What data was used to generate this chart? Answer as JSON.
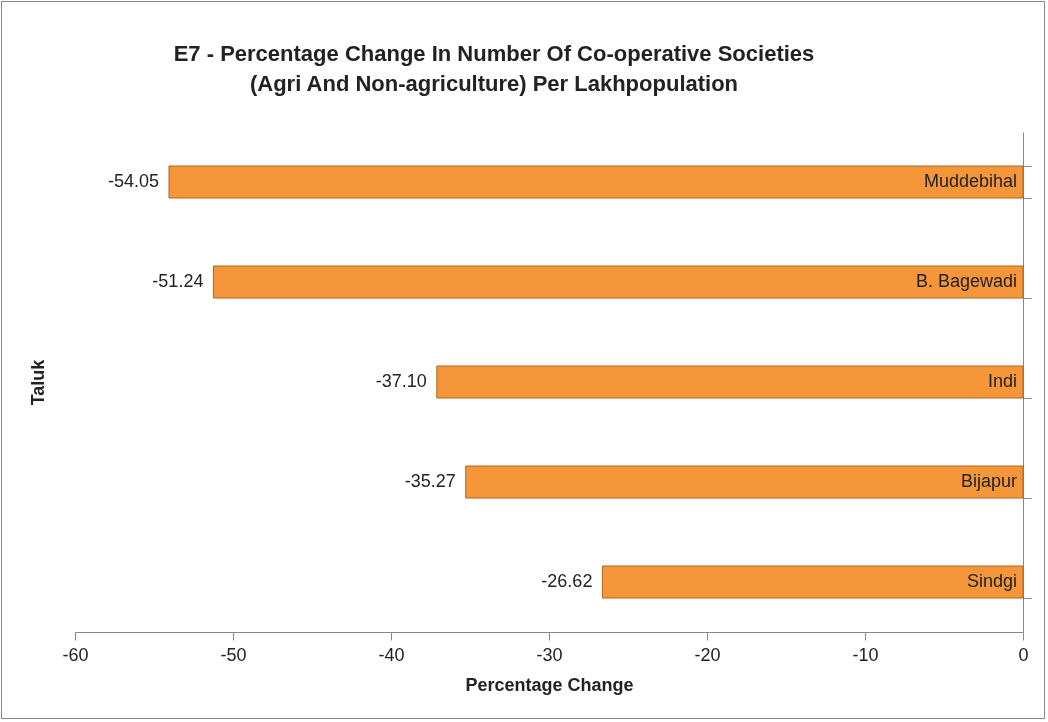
{
  "chart_data": {
    "type": "bar",
    "orientation": "horizontal",
    "title": "E7 - Percentage Change In Number Of Co-operative Societies\n(Agri And Non-agriculture) Per Lakhpopulation",
    "xlabel": "Percentage Change",
    "ylabel": "Taluk",
    "categories": [
      "Muddebihal",
      "B. Bagewadi",
      "Indi",
      "Bijapur",
      "Sindgi"
    ],
    "values": [
      -54.05,
      -51.24,
      -37.1,
      -35.27,
      -26.62
    ],
    "value_labels": [
      "-54.05",
      "-51.24",
      "-37.10",
      "-35.27",
      "-26.62"
    ],
    "color": "#f5963a",
    "xlim": [
      -60,
      0
    ],
    "xticks": [
      -60,
      -50,
      -40,
      -30,
      -20,
      -10,
      0
    ],
    "grid": false
  }
}
